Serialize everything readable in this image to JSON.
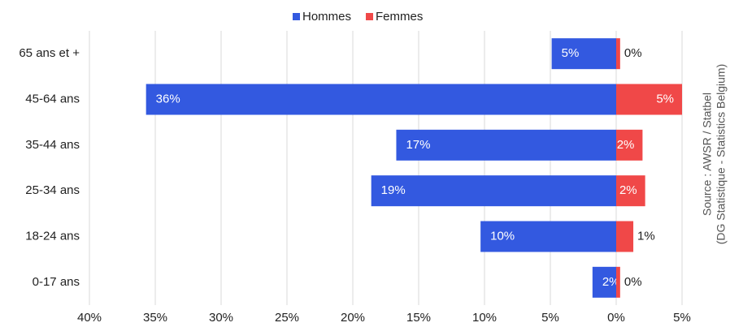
{
  "chart_data": {
    "type": "diverging-bar",
    "source": [
      "Source : AWSR / Statbel",
      "(DG Statistique - Statistics Belgium)"
    ],
    "categories": [
      "65 ans et +",
      "45-64 ans",
      "35-44 ans",
      "25-34 ans",
      "18-24 ans",
      "0-17 ans"
    ],
    "series": [
      {
        "name": "Hommes",
        "color": "#3359e0",
        "values": [
          -4.9,
          -35.7,
          -16.7,
          -18.6,
          -10.3,
          -1.8
        ],
        "value_labels": [
          "5%",
          "36%",
          "17%",
          "19%",
          "10%",
          "2%"
        ]
      },
      {
        "name": "Femmes",
        "color": "#f04848",
        "values": [
          0.3,
          5.0,
          2.0,
          2.2,
          1.3,
          0.3
        ],
        "value_labels": [
          "0%",
          "5%",
          "2%",
          "2%",
          "1%",
          "0%"
        ]
      }
    ],
    "xlim": [
      -40,
      5
    ],
    "xticks": [
      {
        "value": -40,
        "label": "40%"
      },
      {
        "value": -35,
        "label": "35%"
      },
      {
        "value": -30,
        "label": "30%"
      },
      {
        "value": -25,
        "label": "25%"
      },
      {
        "value": -20,
        "label": "20%"
      },
      {
        "value": -15,
        "label": "15%"
      },
      {
        "value": -10,
        "label": "10%"
      },
      {
        "value": -5,
        "label": "5%"
      },
      {
        "value": 0,
        "label": "0%"
      },
      {
        "value": 5,
        "label": "5%"
      }
    ],
    "grid": true,
    "legend": "top"
  }
}
